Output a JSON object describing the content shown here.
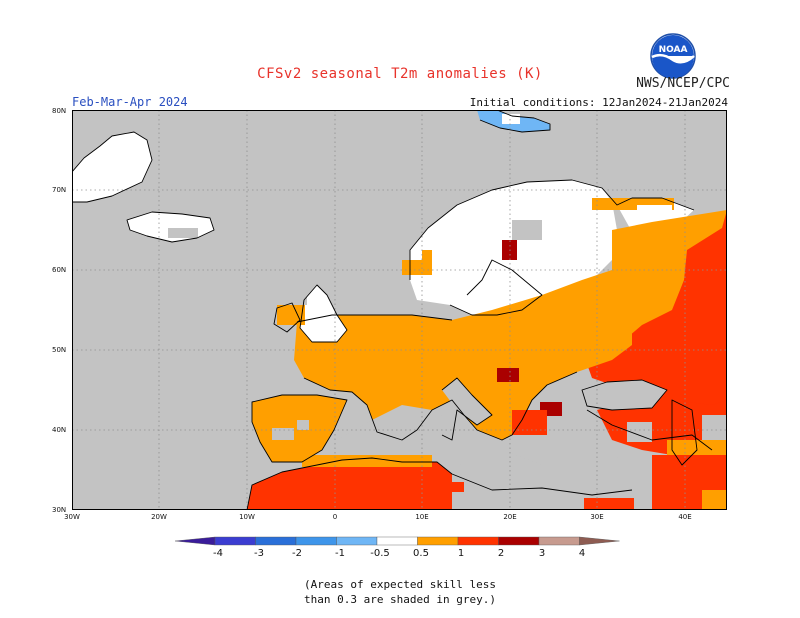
{
  "header": {
    "title": "CFSv2 seasonal T2m anomalies (K)",
    "agency": "NWS/NCEP/CPC",
    "logo_text": "NOAA",
    "season": "Feb-Mar-Apr 2024",
    "initial_conditions": "Initial conditions: 12Jan2024-21Jan2024"
  },
  "map": {
    "lat_labels": [
      "80N",
      "70N",
      "60N",
      "50N",
      "40N",
      "30N"
    ],
    "lon_labels": [
      "30W",
      "20W",
      "10W",
      "0",
      "10E",
      "20E",
      "30E",
      "40E"
    ],
    "extent": {
      "lon": [
        -30,
        45
      ],
      "lat": [
        30,
        80
      ]
    },
    "colors": {
      "ocean_grey": "#c3c3c3",
      "white": "#ffffff",
      "orange": "#ff9f00",
      "red_orange": "#ff3300",
      "dark_red": "#aa0000",
      "light_blue": "#6fb6f5"
    }
  },
  "colorbar": {
    "labels": [
      "-4",
      "-3",
      "-2",
      "-1",
      "-0.5",
      "0.5",
      "1",
      "2",
      "3",
      "4"
    ],
    "colors": [
      "#3a1c9a",
      "#3b3dd1",
      "#2a6fd8",
      "#3e95ea",
      "#6fb6f5",
      "#ffffff",
      "#ff9f00",
      "#ff3300",
      "#aa0000",
      "#c79b8f",
      "#8e5c52"
    ]
  },
  "note": {
    "line1": "(Areas of expected skill less",
    "line2": "than 0.3 are shaded in grey.)"
  }
}
